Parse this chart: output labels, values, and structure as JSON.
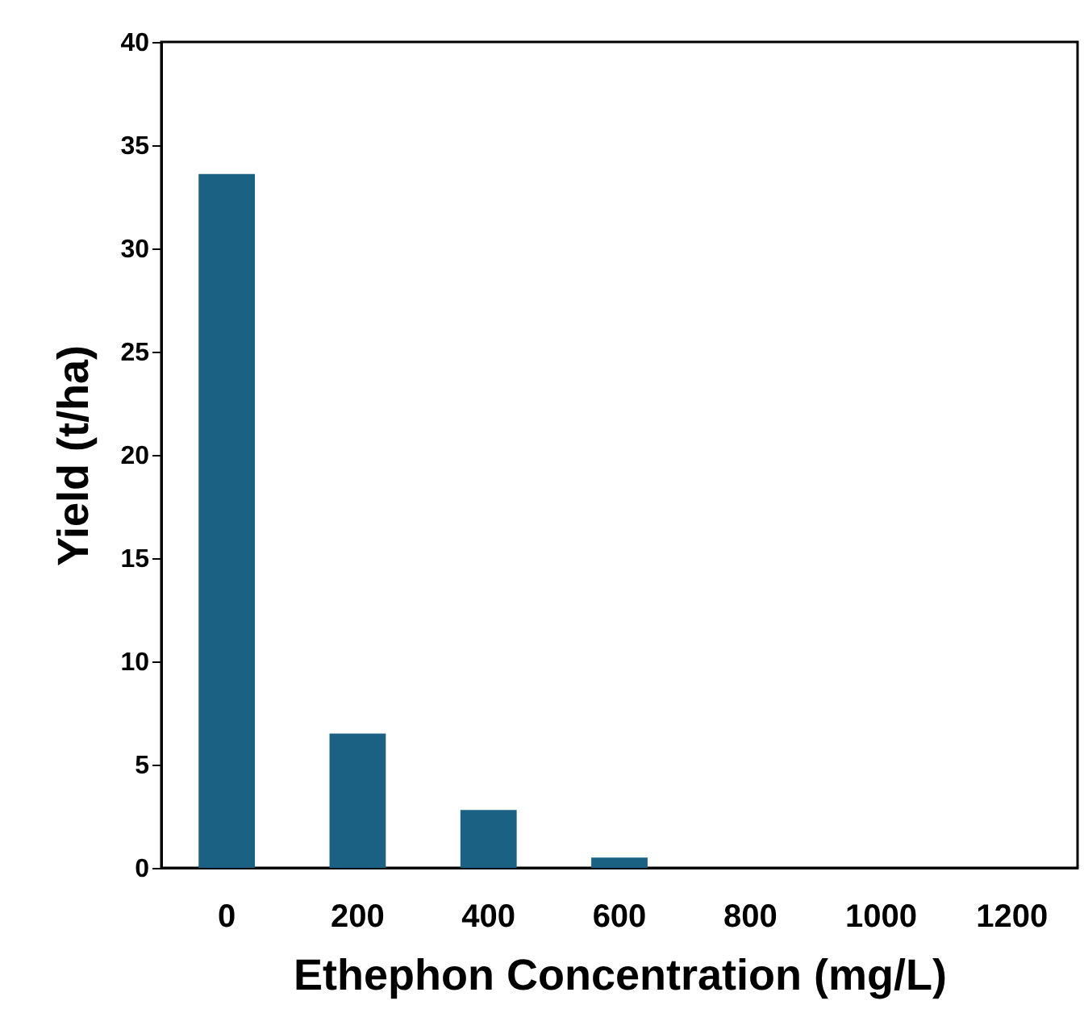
{
  "chart_data": {
    "type": "bar",
    "xlabel": "Ethephon Concentration (mg/L)",
    "ylabel": "Yield (t/ha)",
    "categories": [
      "0",
      "200",
      "400",
      "600",
      "800",
      "1000",
      "1200"
    ],
    "values": [
      33.6,
      6.5,
      2.8,
      0.5,
      0,
      0,
      0
    ],
    "color": "#1b6184",
    "ylim": [
      0,
      40
    ],
    "yticks": [
      0,
      5,
      10,
      15,
      20,
      25,
      30,
      35,
      40
    ],
    "grid": false
  }
}
